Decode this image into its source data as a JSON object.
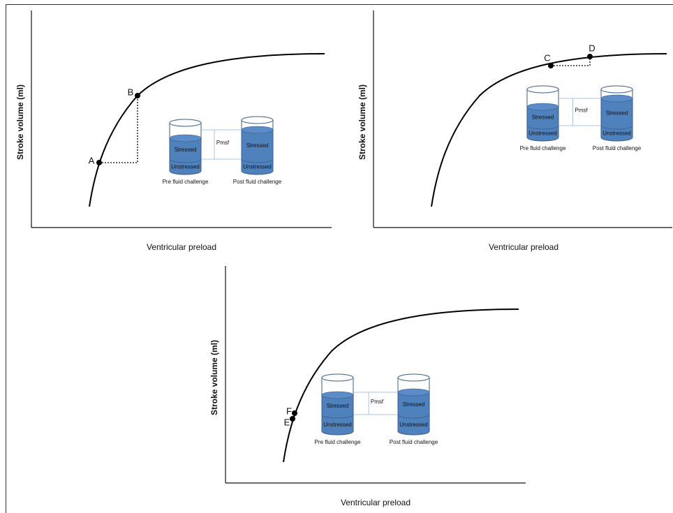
{
  "panels": [
    {
      "y_label": "Stroke volume (ml)",
      "x_label": "Ventricular preload",
      "points": [
        "A",
        "B"
      ],
      "pressure_label": "Pmsf",
      "pre_container": {
        "caption": "Pre fluid challenge",
        "stressed": "Stressed",
        "unstressed": "Unstressed"
      },
      "post_container": {
        "caption": "Post fluid challenge",
        "stressed": "Stressed",
        "unstressed": "Unstressed"
      }
    },
    {
      "y_label": "Stroke volume (ml)",
      "x_label": "Ventricular preload",
      "points": [
        "C",
        "D"
      ],
      "pressure_label": "Pmsf",
      "pre_container": {
        "caption": "Pre fluid challenge",
        "stressed": "Stressed",
        "unstressed": "Unstressed"
      },
      "post_container": {
        "caption": "Post fluid challenge",
        "stressed": "Stressed",
        "unstressed": "Unstressed"
      }
    },
    {
      "y_label": "Stroke volume (ml)",
      "x_label": "Ventricular preload",
      "points": [
        "F",
        "E"
      ],
      "pressure_label": "Pmsf",
      "pre_container": {
        "caption": "Pre fluid challenge",
        "stressed": "Stressed",
        "unstressed": "Unstressed"
      },
      "post_container": {
        "caption": "Post fluid challenge",
        "stressed": "Stressed",
        "unstressed": "Unstressed"
      }
    }
  ]
}
